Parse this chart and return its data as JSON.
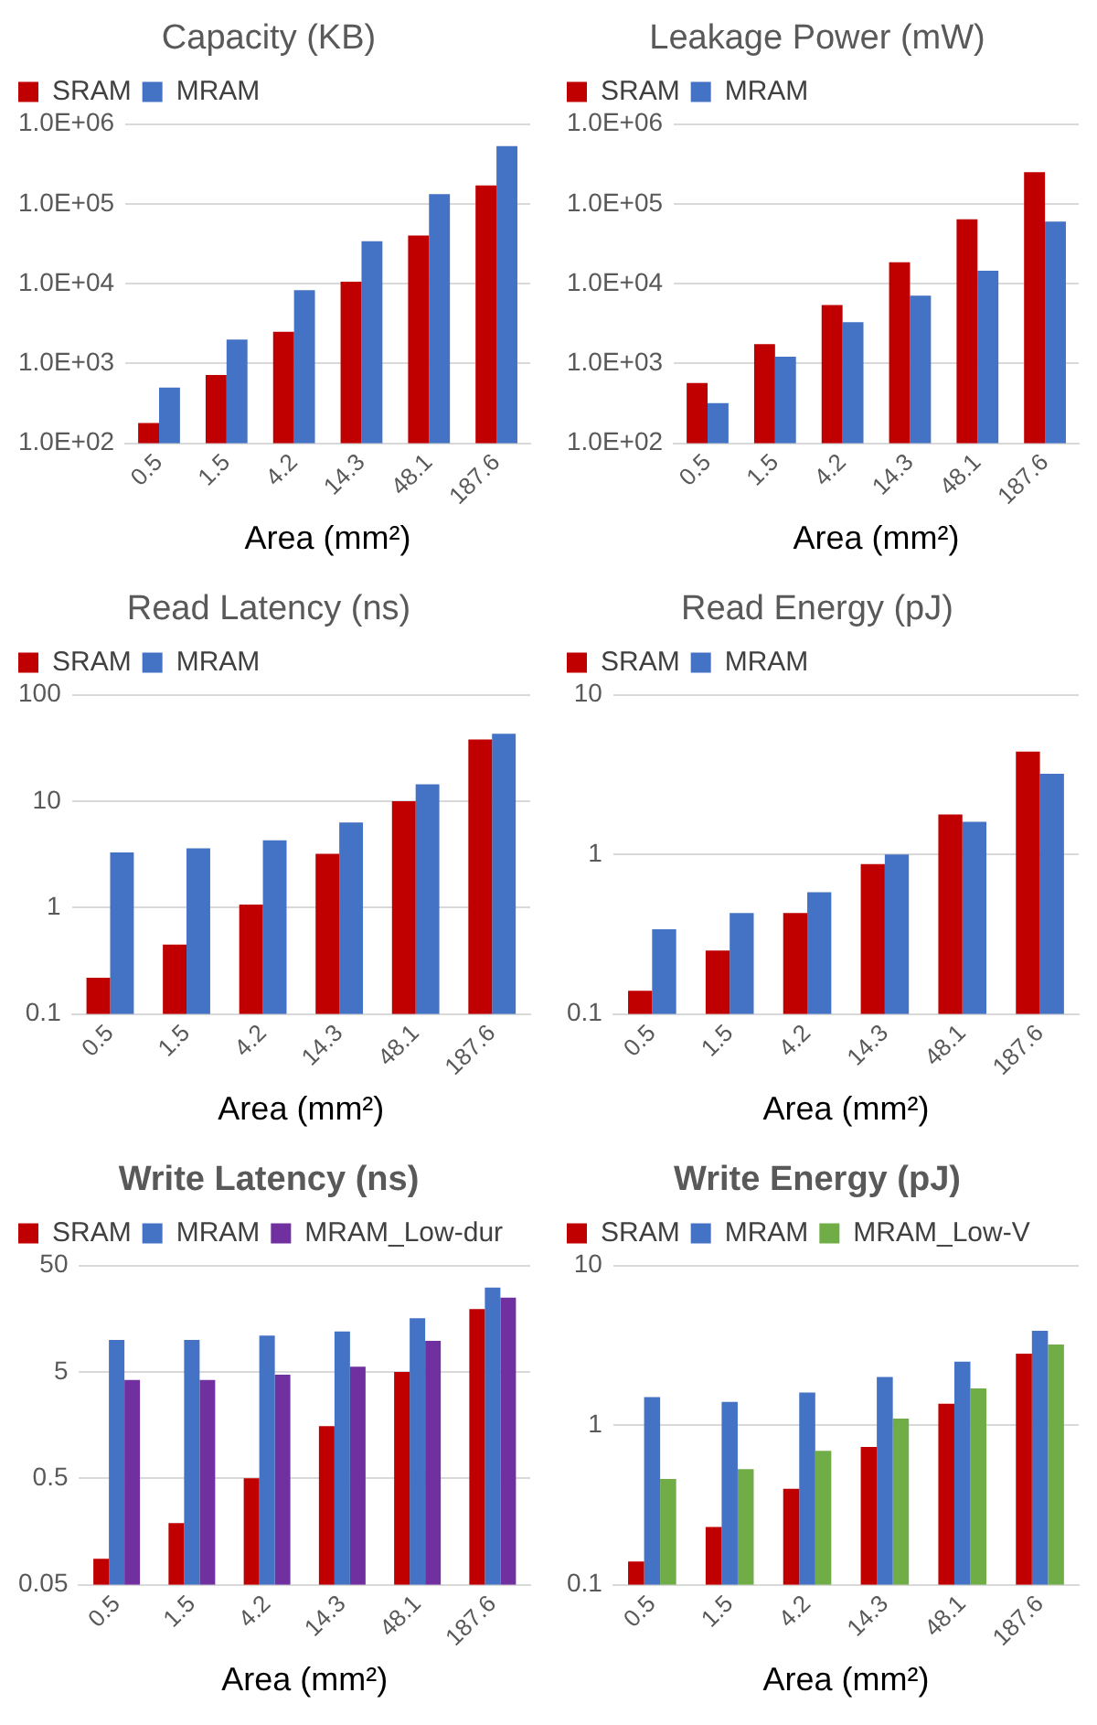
{
  "chart_data": [
    {
      "type": "bar",
      "title": "Capacity (KB)",
      "xlabel": "Area (mm²)",
      "categories": [
        "0.5",
        "1.5",
        "4.2",
        "14.3",
        "48.1",
        "187.6"
      ],
      "log": "y",
      "grid": "y",
      "legend": "top left",
      "ylim": [
        100,
        1000000
      ],
      "yticks": [
        {
          "value": 100,
          "label": "1.0E+02"
        },
        {
          "value": 1000,
          "label": "1.0E+03"
        },
        {
          "value": 10000,
          "label": "1.0E+04"
        },
        {
          "value": 100000,
          "label": "1.0E+05"
        },
        {
          "value": 1000000,
          "label": "1.0E+06"
        }
      ],
      "series": [
        {
          "name": "SRAM",
          "color": "#c00000",
          "values": [
            180,
            720,
            2500,
            10600,
            40000,
            170000
          ]
        },
        {
          "name": "MRAM",
          "color": "#4472c4",
          "values": [
            500,
            2000,
            8300,
            34000,
            132000,
            530000
          ]
        }
      ]
    },
    {
      "type": "bar",
      "title": "Leakage Power (mW)",
      "xlabel": "Area (mm²)",
      "categories": [
        "0.5",
        "1.5",
        "4.2",
        "14.3",
        "48.1",
        "187.6"
      ],
      "log": "y",
      "grid": "y",
      "legend": "top left",
      "ylim": [
        100,
        1000000
      ],
      "yticks": [
        {
          "value": 100,
          "label": "1.0E+02"
        },
        {
          "value": 1000,
          "label": "1.0E+03"
        },
        {
          "value": 10000,
          "label": "1.0E+04"
        },
        {
          "value": 100000,
          "label": "1.0E+05"
        },
        {
          "value": 1000000,
          "label": "1.0E+06"
        }
      ],
      "series": [
        {
          "name": "SRAM",
          "color": "#c00000",
          "values": [
            570,
            1750,
            5400,
            18500,
            64000,
            250000
          ]
        },
        {
          "name": "MRAM",
          "color": "#4472c4",
          "values": [
            320,
            1220,
            3300,
            7100,
            14500,
            60000
          ]
        }
      ]
    },
    {
      "type": "bar",
      "title": "Read Latency (ns)",
      "xlabel": "Area (mm²)",
      "categories": [
        "0.5",
        "1.5",
        "4.2",
        "14.3",
        "48.1",
        "187.6"
      ],
      "log": "y",
      "grid": "y",
      "legend": "top left",
      "ylim": [
        0.1,
        100
      ],
      "yticks": [
        0.1,
        1,
        10,
        100
      ],
      "series": [
        {
          "name": "SRAM",
          "color": "#c00000",
          "values": [
            0.22,
            0.45,
            1.07,
            3.2,
            10,
            38
          ]
        },
        {
          "name": "MRAM",
          "color": "#4472c4",
          "values": [
            3.3,
            3.6,
            4.3,
            6.3,
            14.4,
            43
          ]
        }
      ]
    },
    {
      "type": "bar",
      "title": "Read Energy (pJ)",
      "xlabel": "Area (mm²)",
      "categories": [
        "0.5",
        "1.5",
        "4.2",
        "14.3",
        "48.1",
        "187.6"
      ],
      "log": "y",
      "grid": "y",
      "legend": "top left",
      "ylim": [
        0.1,
        10
      ],
      "yticks": [
        0.1,
        1,
        10
      ],
      "series": [
        {
          "name": "SRAM",
          "color": "#c00000",
          "values": [
            0.14,
            0.25,
            0.43,
            0.87,
            1.78,
            4.4
          ]
        },
        {
          "name": "MRAM",
          "color": "#4472c4",
          "values": [
            0.34,
            0.43,
            0.58,
            1.0,
            1.6,
            3.2
          ]
        }
      ]
    },
    {
      "type": "bar",
      "title": "Write Latency (ns)",
      "xlabel": "Area (mm²)",
      "categories": [
        "0.5",
        "1.5",
        "4.2",
        "14.3",
        "48.1",
        "187.6"
      ],
      "log": "y",
      "grid": "y",
      "legend": "top left",
      "ylim": [
        0.05,
        50
      ],
      "yticks": [
        0.05,
        0.5,
        5,
        50
      ],
      "series": [
        {
          "name": "SRAM",
          "color": "#c00000",
          "values": [
            0.088,
            0.19,
            0.5,
            1.55,
            5,
            19.5
          ]
        },
        {
          "name": "MRAM",
          "color": "#4472c4",
          "values": [
            10,
            10,
            11,
            12,
            16,
            31
          ]
        },
        {
          "name": "MRAM_Low-dur",
          "color": "#7030a0",
          "values": [
            4.2,
            4.2,
            4.7,
            5.6,
            9.8,
            25
          ]
        }
      ]
    },
    {
      "type": "bar",
      "title": "Write Energy (pJ)",
      "xlabel": "Area (mm²)",
      "categories": [
        "0.5",
        "1.5",
        "4.2",
        "14.3",
        "48.1",
        "187.6"
      ],
      "log": "y",
      "grid": "y",
      "legend": "top left",
      "ylim": [
        0.1,
        10
      ],
      "yticks": [
        0.1,
        1,
        10
      ],
      "series": [
        {
          "name": "SRAM",
          "color": "#c00000",
          "values": [
            0.14,
            0.23,
            0.4,
            0.73,
            1.36,
            2.8
          ]
        },
        {
          "name": "MRAM",
          "color": "#4472c4",
          "values": [
            1.5,
            1.4,
            1.6,
            2.0,
            2.5,
            3.9
          ]
        },
        {
          "name": "MRAM_Low-V",
          "color": "#70ad47",
          "values": [
            0.46,
            0.53,
            0.69,
            1.1,
            1.7,
            3.2
          ]
        }
      ]
    }
  ]
}
